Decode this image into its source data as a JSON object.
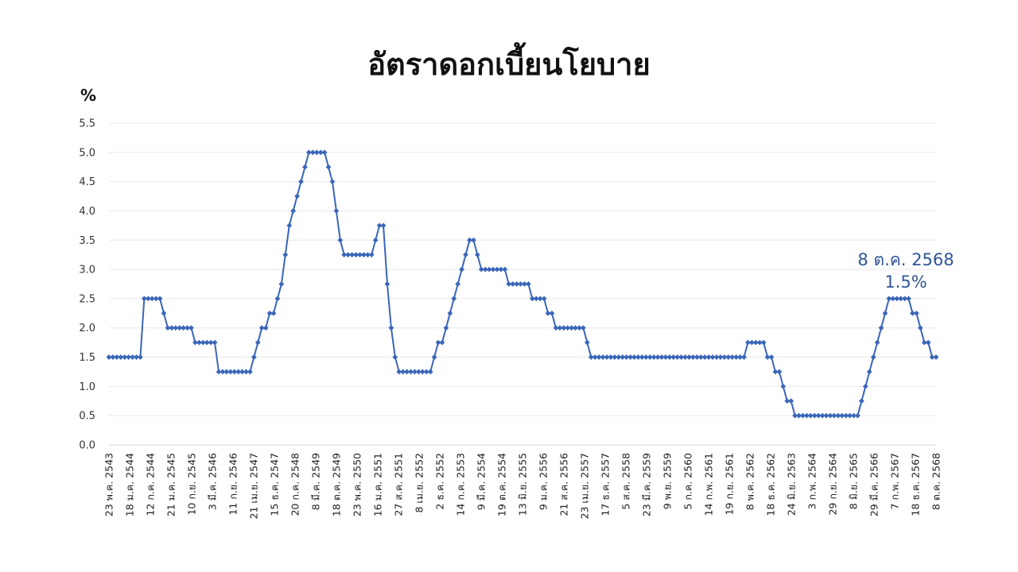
{
  "chart_data": {
    "type": "line",
    "title": "อัตราดอกเบี้ยนโยบาย",
    "ylabel": "%",
    "xlabel": "",
    "ylim": [
      0,
      5.5
    ],
    "yticks": [
      "0.0",
      "0.5",
      "1.0",
      "1.5",
      "2.0",
      "2.5",
      "3.0",
      "3.5",
      "4.0",
      "4.5",
      "5.0",
      "5.5"
    ],
    "grid": true,
    "legend": "none",
    "color": "#3a66b8",
    "marker": "diamond",
    "x_tick_labels": [
      "23 พ.ค. 2543",
      "18 ม.ค. 2544",
      "12 ก.ค. 2544",
      "21 ม.ค. 2545",
      "10 ก.ย. 2545",
      "3 มี.ค. 2546",
      "11 ก.ย. 2546",
      "21 เม.ย. 2547",
      "15 ธ.ค. 2547",
      "20 ก.ค. 2548",
      "8 มี.ค. 2549",
      "18 ต.ค. 2549",
      "23 พ.ค. 2550",
      "16 ม.ค. 2551",
      "27 ส.ค. 2551",
      "8 เม.ย. 2552",
      "2 ธ.ค. 2552",
      "14 ก.ค. 2553",
      "9 มี.ค. 2554",
      "19 ต.ค. 2554",
      "13 มิ.ย. 2555",
      "9 ม.ค. 2556",
      "21 ส.ค. 2556",
      "23 เม.ย. 2557",
      "17 ธ.ค. 2557",
      "5 ส.ค. 2558",
      "23 มี.ค. 2559",
      "9 พ.ย. 2559",
      "5 ก.ค. 2560",
      "14 ก.พ. 2561",
      "19 ก.ย. 2561",
      "8 พ.ค. 2562",
      "18 ธ.ค. 2562",
      "24 มิ.ย. 2563",
      "3 ก.พ. 2564",
      "29 ก.ย. 2564",
      "8 มิ.ย. 2565",
      "29 มี.ค. 2566",
      "7 ก.พ. 2567",
      "18 ธ.ค. 2567",
      "8 ต.ค. 2568"
    ],
    "values": [
      1.5,
      1.5,
      1.5,
      1.5,
      1.5,
      1.5,
      1.5,
      1.5,
      1.5,
      2.5,
      2.5,
      2.5,
      2.5,
      2.5,
      2.25,
      2.0,
      2.0,
      2.0,
      2.0,
      2.0,
      2.0,
      2.0,
      1.75,
      1.75,
      1.75,
      1.75,
      1.75,
      1.75,
      1.25,
      1.25,
      1.25,
      1.25,
      1.25,
      1.25,
      1.25,
      1.25,
      1.25,
      1.5,
      1.75,
      2.0,
      2.0,
      2.25,
      2.25,
      2.5,
      2.75,
      3.25,
      3.75,
      4.0,
      4.25,
      4.5,
      4.75,
      5.0,
      5.0,
      5.0,
      5.0,
      5.0,
      4.75,
      4.5,
      4.0,
      3.5,
      3.25,
      3.25,
      3.25,
      3.25,
      3.25,
      3.25,
      3.25,
      3.25,
      3.5,
      3.75,
      3.75,
      2.75,
      2.0,
      1.5,
      1.25,
      1.25,
      1.25,
      1.25,
      1.25,
      1.25,
      1.25,
      1.25,
      1.25,
      1.5,
      1.75,
      1.75,
      2.0,
      2.25,
      2.5,
      2.75,
      3.0,
      3.25,
      3.5,
      3.5,
      3.25,
      3.0,
      3.0,
      3.0,
      3.0,
      3.0,
      3.0,
      3.0,
      2.75,
      2.75,
      2.75,
      2.75,
      2.75,
      2.75,
      2.5,
      2.5,
      2.5,
      2.5,
      2.25,
      2.25,
      2.0,
      2.0,
      2.0,
      2.0,
      2.0,
      2.0,
      2.0,
      2.0,
      1.75,
      1.5,
      1.5,
      1.5,
      1.5,
      1.5,
      1.5,
      1.5,
      1.5,
      1.5,
      1.5,
      1.5,
      1.5,
      1.5,
      1.5,
      1.5,
      1.5,
      1.5,
      1.5,
      1.5,
      1.5,
      1.5,
      1.5,
      1.5,
      1.5,
      1.5,
      1.5,
      1.5,
      1.5,
      1.5,
      1.5,
      1.5,
      1.5,
      1.5,
      1.5,
      1.5,
      1.5,
      1.5,
      1.5,
      1.5,
      1.5,
      1.75,
      1.75,
      1.75,
      1.75,
      1.75,
      1.5,
      1.5,
      1.25,
      1.25,
      1.0,
      0.75,
      0.75,
      0.5,
      0.5,
      0.5,
      0.5,
      0.5,
      0.5,
      0.5,
      0.5,
      0.5,
      0.5,
      0.5,
      0.5,
      0.5,
      0.5,
      0.5,
      0.5,
      0.5,
      0.75,
      1.0,
      1.25,
      1.5,
      1.75,
      2.0,
      2.25,
      2.5,
      2.5,
      2.5,
      2.5,
      2.5,
      2.5,
      2.25,
      2.25,
      2.0,
      1.75,
      1.75,
      1.5,
      1.5
    ],
    "annotations": [
      {
        "text": "8 ต.ค. 2568",
        "point": "last"
      },
      {
        "text": "1.5%",
        "point": "last"
      }
    ]
  }
}
